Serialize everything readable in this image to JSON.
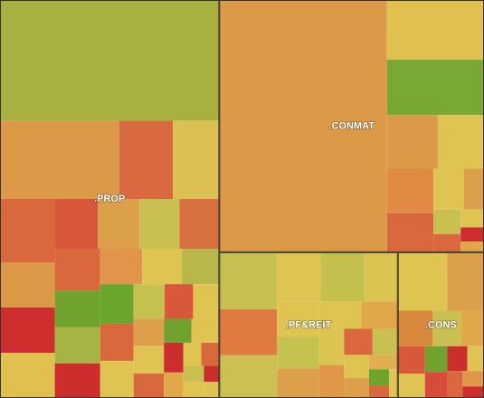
{
  "chart_data": {
    "type": "treemap",
    "groups": [
      {
        "name": ".PROP",
        "children": [
          {
            "value": 32,
            "color": "#a8b040"
          },
          {
            "value": 11.3,
            "color": "#dc9a48"
          },
          {
            "value": 5.1,
            "color": "#d9693f"
          },
          {
            "value": 4.4,
            "color": "#dcc052"
          },
          {
            "value": 4.2,
            "color": "#d9683c"
          },
          {
            "value": 3.0,
            "color": "#dc9a48"
          },
          {
            "value": 3.0,
            "color": "#cf2e2e"
          },
          {
            "value": 3.0,
            "color": "#e0c150"
          },
          {
            "value": 2.6,
            "color": "#d9573a"
          },
          {
            "value": 2.5,
            "color": "#dca04a"
          },
          {
            "value": 2.4,
            "color": "#c8c050"
          },
          {
            "value": 2.4,
            "color": "#d97040"
          },
          {
            "value": 2.3,
            "color": "#d9683c"
          },
          {
            "value": 2.0,
            "color": "#6fa32e"
          },
          {
            "value": 2.0,
            "color": "#a6b444"
          },
          {
            "value": 1.9,
            "color": "#cc2d2d"
          },
          {
            "value": 1.8,
            "color": "#e0954a"
          },
          {
            "value": 1.7,
            "color": "#e0c452"
          },
          {
            "value": 1.6,
            "color": "#b8b84a"
          },
          {
            "value": 1.6,
            "color": "#6aa52c"
          },
          {
            "value": 1.5,
            "color": "#d9683c"
          },
          {
            "value": 1.5,
            "color": "#e0c452"
          },
          {
            "value": 1.3,
            "color": "#c6c250"
          },
          {
            "value": 1.2,
            "color": "#d9573a"
          },
          {
            "value": 1.1,
            "color": "#e0c452"
          },
          {
            "value": 1.0,
            "color": "#dca04a"
          },
          {
            "value": 1.0,
            "color": "#e0c452"
          },
          {
            "value": 0.9,
            "color": "#d9683c"
          },
          {
            "value": 0.8,
            "color": "#6fa32e"
          },
          {
            "value": 0.8,
            "color": "#e0c452"
          },
          {
            "value": 0.7,
            "color": "#cc2d2d"
          },
          {
            "value": 0.6,
            "color": "#e0a848"
          },
          {
            "value": 0.5,
            "color": "#e0c452"
          },
          {
            "value": 0.5,
            "color": "#d9683c"
          },
          {
            "value": 0.4,
            "color": "#c8c050"
          },
          {
            "value": 0.4,
            "color": "#e0c452"
          },
          {
            "value": 0.3,
            "color": "#cc2d2d"
          },
          {
            "value": 0.3,
            "color": "#e0c452"
          }
        ]
      },
      {
        "name": ".CONMAT",
        "children": [
          {
            "value": 51.2,
            "color": "#dc9a48"
          },
          {
            "value": 7.0,
            "color": "#e0c150"
          },
          {
            "value": 6.5,
            "color": "#7aa834"
          },
          {
            "value": 3.3,
            "color": "#dc9a48"
          },
          {
            "value": 3.0,
            "color": "#e0c452"
          },
          {
            "value": 2.5,
            "color": "#e08a44"
          },
          {
            "value": 2.2,
            "color": "#d9683c"
          },
          {
            "value": 1.5,
            "color": "#e0c452"
          },
          {
            "value": 1.0,
            "color": "#dca04a"
          },
          {
            "value": 0.8,
            "color": "#c8c050"
          },
          {
            "value": 0.6,
            "color": "#d9683c"
          },
          {
            "value": 0.5,
            "color": "#e0c452"
          },
          {
            "value": 0.4,
            "color": "#cc2d2d"
          },
          {
            "value": 0.3,
            "color": "#e0a848"
          }
        ]
      },
      {
        "name": ".PF&REIT",
        "children": [
          {
            "value": 4.0,
            "color": "#c8c050"
          },
          {
            "value": 3.2,
            "color": "#e07a40"
          },
          {
            "value": 3.0,
            "color": "#ccc050"
          },
          {
            "value": 2.6,
            "color": "#e0c452"
          },
          {
            "value": 2.6,
            "color": "#c3c04e"
          },
          {
            "value": 2.0,
            "color": "#dcc452"
          },
          {
            "value": 1.8,
            "color": "#e0c452"
          },
          {
            "value": 1.6,
            "color": "#c6c250"
          },
          {
            "value": 1.5,
            "color": "#dca04a"
          },
          {
            "value": 1.4,
            "color": "#e0c452"
          },
          {
            "value": 1.2,
            "color": "#e0a848"
          },
          {
            "value": 1.1,
            "color": "#dcc452"
          },
          {
            "value": 1.0,
            "color": "#e09848"
          },
          {
            "value": 0.9,
            "color": "#d9683c"
          },
          {
            "value": 0.8,
            "color": "#c8c050"
          },
          {
            "value": 0.7,
            "color": "#e0c452"
          },
          {
            "value": 0.6,
            "color": "#dca04a"
          },
          {
            "value": 0.5,
            "color": "#e0b050"
          },
          {
            "value": 0.4,
            "color": "#6fa32e"
          },
          {
            "value": 0.3,
            "color": "#d9683c"
          },
          {
            "value": 0.3,
            "color": "#e0c452"
          }
        ]
      },
      {
        "name": ".CONS",
        "children": [
          {
            "value": 3.5,
            "color": "#e0c452"
          },
          {
            "value": 2.6,
            "color": "#dca04a"
          },
          {
            "value": 1.5,
            "color": "#d9893e"
          },
          {
            "value": 1.2,
            "color": "#c8c050"
          },
          {
            "value": 1.0,
            "color": "#e0a848"
          },
          {
            "value": 0.9,
            "color": "#d9573a"
          },
          {
            "value": 0.8,
            "color": "#e0c452"
          },
          {
            "value": 0.7,
            "color": "#6fa32e"
          },
          {
            "value": 0.7,
            "color": "#d84a3a"
          },
          {
            "value": 0.6,
            "color": "#cc2d2d"
          },
          {
            "value": 0.5,
            "color": "#e0c452"
          },
          {
            "value": 0.5,
            "color": "#d9683c"
          },
          {
            "value": 0.4,
            "color": "#e09848"
          },
          {
            "value": 0.3,
            "color": "#cc2d2d"
          }
        ]
      }
    ]
  }
}
